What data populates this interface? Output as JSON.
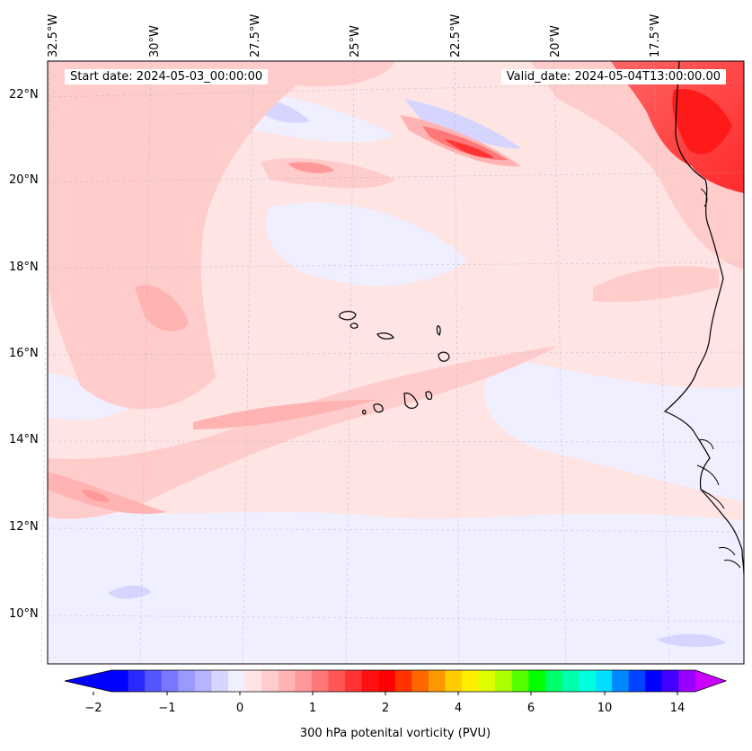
{
  "map": {
    "longitude_labels": [
      "32.5°W",
      "30°W",
      "27.5°W",
      "25°W",
      "22.5°W",
      "20°W",
      "17.5°W"
    ],
    "latitude_labels": [
      "22°N",
      "20°N",
      "18°N",
      "16°N",
      "14°N",
      "12°N",
      "10°N"
    ],
    "start_date": "Start date: 2024-05-03_00:00:00",
    "valid_date": "Valid_date: 2024-05-04T13:00:00.00",
    "ocean_color": "#ffe4e4",
    "land_outline_color": "#000000"
  },
  "colorbar": {
    "title": "300 hPa potenital vorticity (PVU)",
    "tick_labels": [
      "−2",
      "−1",
      "0",
      "1",
      "2",
      "4",
      "6",
      "10",
      "14"
    ],
    "colors": [
      "#0000ff",
      "#2a2aff",
      "#5555ff",
      "#7777ff",
      "#9999ff",
      "#b5b5ff",
      "#d5d5ff",
      "#efefff",
      "#ffe4e4",
      "#ffcccc",
      "#ffb3b3",
      "#ff9999",
      "#ff7777",
      "#ff5555",
      "#ff3333",
      "#ff1111",
      "#ff0000",
      "#ff3300",
      "#ff6600",
      "#ff9900",
      "#ffcc00",
      "#ffee00",
      "#ddff00",
      "#aaff00",
      "#55ff00",
      "#00ff00",
      "#00ff66",
      "#00ffaa",
      "#00ffdd",
      "#00ddff",
      "#0088ff",
      "#0044ff",
      "#0000ff",
      "#4400ff",
      "#9900ff"
    ],
    "extend_low_color": "#0000ff",
    "extend_high_color": "#cc00ff"
  }
}
